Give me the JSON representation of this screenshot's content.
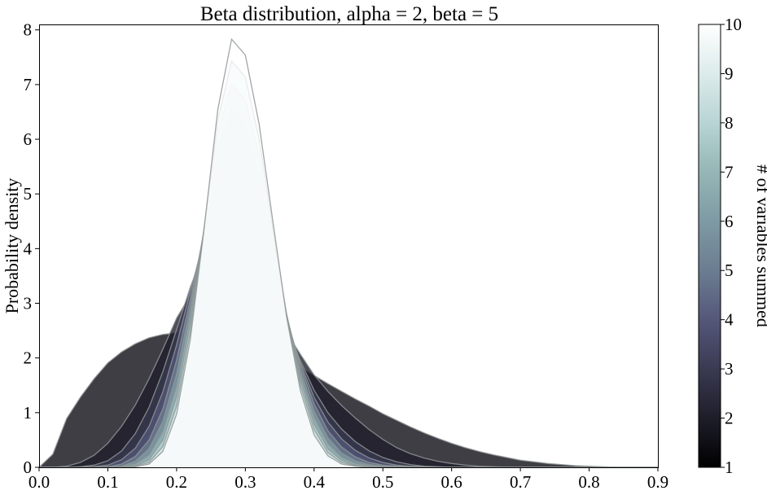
{
  "chart_data": {
    "type": "area",
    "title": "Beta distribution, alpha = 2, beta = 5",
    "xlabel": "",
    "ylabel": "Probability density",
    "xlim": [
      0.0,
      0.9
    ],
    "ylim": [
      0,
      8.1
    ],
    "xticks": [
      "0.0",
      "0.1",
      "0.2",
      "0.3",
      "0.4",
      "0.5",
      "0.6",
      "0.7",
      "0.8",
      "0.9"
    ],
    "yticks": [
      "0",
      "1",
      "2",
      "3",
      "4",
      "5",
      "6",
      "7",
      "8"
    ],
    "grid": false,
    "colorbar": {
      "label": "# of variables summed",
      "min": 1,
      "max": 10,
      "ticks": [
        "1",
        "2",
        "3",
        "4",
        "5",
        "6",
        "7",
        "8",
        "9",
        "10"
      ],
      "colormap": "bone",
      "colors": [
        "#000000",
        "#1e1e2a",
        "#3a3a52",
        "#55577a",
        "#6b7d91",
        "#7e9aa4",
        "#95b6b6",
        "#b8d4d4",
        "#dcebeb",
        "#ffffff"
      ]
    },
    "x": [
      0.0,
      0.02,
      0.04,
      0.06,
      0.08,
      0.1,
      0.12,
      0.14,
      0.16,
      0.18,
      0.2,
      0.22,
      0.24,
      0.26,
      0.28,
      0.3,
      0.32,
      0.34,
      0.36,
      0.38,
      0.4,
      0.42,
      0.44,
      0.46,
      0.48,
      0.5,
      0.52,
      0.54,
      0.56,
      0.58,
      0.6,
      0.62,
      0.64,
      0.66,
      0.68,
      0.7,
      0.72,
      0.74,
      0.76,
      0.78,
      0.8,
      0.82,
      0.84,
      0.86,
      0.88,
      0.9
    ],
    "series": [
      {
        "values": [
          0.0,
          0.24,
          0.89,
          1.28,
          1.62,
          1.91,
          2.11,
          2.26,
          2.37,
          2.43,
          2.46,
          2.46,
          2.43,
          2.38,
          2.31,
          2.23,
          2.13,
          2.06,
          1.95,
          1.83,
          1.68,
          1.53,
          1.39,
          1.25,
          1.12,
          0.98,
          0.86,
          0.74,
          0.63,
          0.53,
          0.44,
          0.36,
          0.29,
          0.23,
          0.18,
          0.13,
          0.1,
          0.07,
          0.05,
          0.03,
          0.02,
          0.01,
          0.0,
          0.0,
          0.0,
          0.0
        ]
      },
      {
        "values": [
          0.0,
          0.0,
          0.02,
          0.09,
          0.22,
          0.44,
          0.75,
          1.14,
          1.62,
          2.16,
          2.73,
          3.15,
          3.38,
          3.45,
          3.42,
          3.3,
          3.1,
          2.83,
          2.47,
          2.07,
          1.69,
          1.39,
          1.13,
          0.9,
          0.69,
          0.51,
          0.36,
          0.25,
          0.17,
          0.11,
          0.07,
          0.04,
          0.02,
          0.01,
          0.0,
          0.0,
          0.0,
          0.0,
          0.0,
          0.0,
          0.0,
          0.0,
          0.0,
          0.0,
          0.0,
          0.0
        ]
      },
      {
        "values": [
          0.0,
          0.0,
          0.0,
          0.01,
          0.04,
          0.12,
          0.3,
          0.62,
          1.1,
          1.75,
          2.52,
          3.3,
          3.94,
          4.22,
          4.24,
          4.06,
          3.7,
          3.18,
          2.57,
          1.95,
          1.41,
          1.0,
          0.7,
          0.47,
          0.3,
          0.18,
          0.1,
          0.05,
          0.02,
          0.01,
          0.0,
          0.0,
          0.0,
          0.0,
          0.0,
          0.0,
          0.0,
          0.0,
          0.0,
          0.0,
          0.0,
          0.0,
          0.0,
          0.0,
          0.0,
          0.0
        ]
      },
      {
        "values": [
          0.0,
          0.0,
          0.0,
          0.0,
          0.01,
          0.04,
          0.14,
          0.35,
          0.75,
          1.38,
          2.24,
          3.22,
          4.17,
          4.78,
          4.92,
          4.69,
          4.17,
          3.46,
          2.67,
          1.91,
          1.28,
          0.83,
          0.52,
          0.31,
          0.17,
          0.09,
          0.04,
          0.02,
          0.01,
          0.0,
          0.0,
          0.0,
          0.0,
          0.0,
          0.0,
          0.0,
          0.0,
          0.0,
          0.0,
          0.0,
          0.0,
          0.0,
          0.0,
          0.0,
          0.0,
          0.0
        ]
      },
      {
        "values": [
          0.0,
          0.0,
          0.0,
          0.0,
          0.0,
          0.01,
          0.06,
          0.2,
          0.5,
          1.07,
          1.96,
          3.08,
          4.28,
          5.22,
          5.52,
          5.27,
          4.6,
          3.7,
          2.74,
          1.86,
          1.16,
          0.67,
          0.37,
          0.19,
          0.09,
          0.04,
          0.02,
          0.01,
          0.0,
          0.0,
          0.0,
          0.0,
          0.0,
          0.0,
          0.0,
          0.0,
          0.0,
          0.0,
          0.0,
          0.0,
          0.0,
          0.0,
          0.0,
          0.0,
          0.0,
          0.0
        ]
      },
      {
        "values": [
          0.0,
          0.0,
          0.0,
          0.0,
          0.0,
          0.0,
          0.02,
          0.11,
          0.34,
          0.84,
          1.71,
          2.94,
          4.34,
          5.56,
          6.05,
          5.8,
          5.0,
          3.91,
          2.78,
          1.78,
          1.03,
          0.54,
          0.26,
          0.12,
          0.05,
          0.02,
          0.01,
          0.0,
          0.0,
          0.0,
          0.0,
          0.0,
          0.0,
          0.0,
          0.0,
          0.0,
          0.0,
          0.0,
          0.0,
          0.0,
          0.0,
          0.0,
          0.0,
          0.0,
          0.0,
          0.0
        ]
      },
      {
        "values": [
          0.0,
          0.0,
          0.0,
          0.0,
          0.0,
          0.0,
          0.01,
          0.06,
          0.22,
          0.65,
          1.48,
          2.78,
          4.36,
          5.86,
          6.55,
          6.28,
          5.36,
          4.09,
          2.8,
          1.7,
          0.91,
          0.43,
          0.18,
          0.07,
          0.03,
          0.01,
          0.0,
          0.0,
          0.0,
          0.0,
          0.0,
          0.0,
          0.0,
          0.0,
          0.0,
          0.0,
          0.0,
          0.0,
          0.0,
          0.0,
          0.0,
          0.0,
          0.0,
          0.0,
          0.0,
          0.0
        ]
      },
      {
        "values": [
          0.0,
          0.0,
          0.0,
          0.0,
          0.0,
          0.0,
          0.0,
          0.03,
          0.14,
          0.5,
          1.29,
          2.63,
          4.37,
          6.12,
          7.0,
          6.72,
          5.69,
          4.25,
          2.8,
          1.6,
          0.79,
          0.34,
          0.13,
          0.04,
          0.01,
          0.0,
          0.0,
          0.0,
          0.0,
          0.0,
          0.0,
          0.0,
          0.0,
          0.0,
          0.0,
          0.0,
          0.0,
          0.0,
          0.0,
          0.0,
          0.0,
          0.0,
          0.0,
          0.0,
          0.0,
          0.0
        ]
      },
      {
        "values": [
          0.0,
          0.0,
          0.0,
          0.0,
          0.0,
          0.0,
          0.0,
          0.02,
          0.09,
          0.38,
          1.12,
          2.48,
          4.37,
          6.35,
          7.43,
          7.14,
          6.0,
          4.38,
          2.78,
          1.5,
          0.69,
          0.27,
          0.09,
          0.03,
          0.01,
          0.0,
          0.0,
          0.0,
          0.0,
          0.0,
          0.0,
          0.0,
          0.0,
          0.0,
          0.0,
          0.0,
          0.0,
          0.0,
          0.0,
          0.0,
          0.0,
          0.0,
          0.0,
          0.0,
          0.0,
          0.0
        ]
      },
      {
        "values": [
          0.0,
          0.0,
          0.0,
          0.0,
          0.0,
          0.0,
          0.0,
          0.01,
          0.06,
          0.29,
          0.97,
          2.34,
          4.36,
          6.55,
          7.83,
          7.54,
          6.28,
          4.5,
          2.75,
          1.4,
          0.59,
          0.21,
          0.06,
          0.02,
          0.0,
          0.0,
          0.0,
          0.0,
          0.0,
          0.0,
          0.0,
          0.0,
          0.0,
          0.0,
          0.0,
          0.0,
          0.0,
          0.0,
          0.0,
          0.0,
          0.0,
          0.0,
          0.0,
          0.0,
          0.0,
          0.0
        ]
      }
    ]
  }
}
